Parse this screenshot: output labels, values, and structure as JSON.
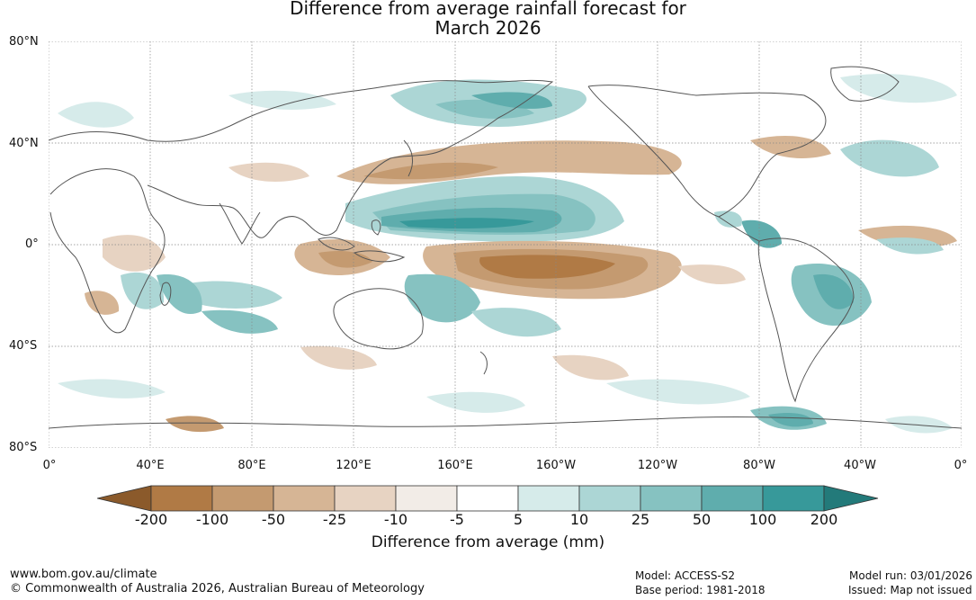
{
  "title_line1": "Difference from average rainfall forecast for",
  "title_line2": "March 2026",
  "lat_labels": [
    "80°N",
    "40°N",
    "0°",
    "40°S",
    "80°S"
  ],
  "lon_labels": [
    "0°",
    "40°E",
    "80°E",
    "120°E",
    "160°E",
    "160°W",
    "120°W",
    "80°W",
    "40°W",
    "0°"
  ],
  "colorbar": {
    "ticks": [
      "-200",
      "-100",
      "-50",
      "-25",
      "-10",
      "-5",
      "5",
      "10",
      "25",
      "50",
      "100",
      "200"
    ],
    "colors": [
      "#8b5a2b",
      "#b07a45",
      "#c49a70",
      "#d6b595",
      "#e7d3c2",
      "#f2ece7",
      "#ffffff",
      "#d6ebea",
      "#acd6d5",
      "#86c2c1",
      "#5fadad",
      "#37999a",
      "#237a7a"
    ],
    "label": "Difference from average (mm)"
  },
  "footer": {
    "website": "www.bom.gov.au/climate",
    "copyright": "© Commonwealth of Australia 2026, Australian Bureau of Meteorology",
    "model": "Model: ACCESS-S2",
    "base_period": "Base period: 1981-2018",
    "model_run": "Model run: 03/01/2026",
    "issued": "Issued: Map not issued"
  }
}
